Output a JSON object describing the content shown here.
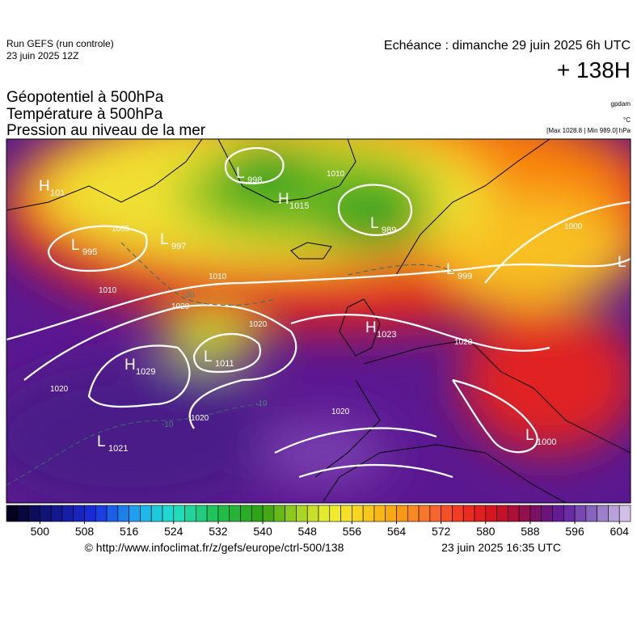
{
  "header": {
    "run": "Run GEFS (run controle)",
    "run_date": "23 juin 2025 12Z",
    "echeance": "Echéance : dimanche 29 juin 2025 6h UTC",
    "lead": "+ 138H"
  },
  "titles": [
    "Géopotentiel à 500hPa",
    "Température à 500hPa",
    "Pression au niveau de la mer"
  ],
  "units": {
    "geopotential": "gpdam",
    "temperature": "°C",
    "minmax": "[Max 1028.8 | Min 989.0]",
    "pressure": "hPa"
  },
  "centers": [
    {
      "kind": "H",
      "value": "101"
    },
    {
      "kind": "L",
      "value": "995"
    },
    {
      "kind": "L",
      "value": "997"
    },
    {
      "kind": "L",
      "value": "998"
    },
    {
      "kind": "H",
      "value": "1015"
    },
    {
      "kind": "L",
      "value": "989"
    },
    {
      "kind": "H",
      "value": "1029"
    },
    {
      "kind": "L",
      "value": "1011"
    },
    {
      "kind": "H",
      "value": "1023"
    },
    {
      "kind": "L",
      "value": "1021"
    },
    {
      "kind": "L",
      "value": "1000"
    },
    {
      "kind": "L",
      "value": "999"
    },
    {
      "kind": "L",
      "value": ""
    }
  ],
  "isobar_labels": [
    "1010",
    "1020",
    "1020",
    "1020",
    "1020",
    "1020",
    "1020",
    "1000",
    "1010",
    "1010",
    "1005"
  ],
  "temperature_labels": [
    "-10",
    "-20",
    "-10"
  ],
  "colorbar": {
    "range": [
      494,
      606
    ],
    "step": 2,
    "ticks": [
      500,
      508,
      516,
      524,
      532,
      540,
      548,
      556,
      564,
      572,
      580,
      588,
      596,
      604
    ],
    "color_stops": [
      [
        494,
        "#000010"
      ],
      [
        500,
        "#10106a"
      ],
      [
        510,
        "#1a2ee0"
      ],
      [
        518,
        "#20b0f0"
      ],
      [
        524,
        "#20e0c8"
      ],
      [
        532,
        "#20c050"
      ],
      [
        540,
        "#30a010"
      ],
      [
        546,
        "#a0d020"
      ],
      [
        552,
        "#f0f030"
      ],
      [
        558,
        "#f8d020"
      ],
      [
        564,
        "#f8a010"
      ],
      [
        570,
        "#f87030"
      ],
      [
        576,
        "#f03020"
      ],
      [
        582,
        "#d01020"
      ],
      [
        586,
        "#a01040"
      ],
      [
        590,
        "#701070"
      ],
      [
        594,
        "#6020a0"
      ],
      [
        600,
        "#9070c0"
      ],
      [
        606,
        "#e0d0f0"
      ]
    ]
  },
  "footer": {
    "url": "© http://www.infoclimat.fr/z/gefs/europe/ctrl-500/138",
    "generated": "23 juin 2025 16:35 UTC"
  }
}
